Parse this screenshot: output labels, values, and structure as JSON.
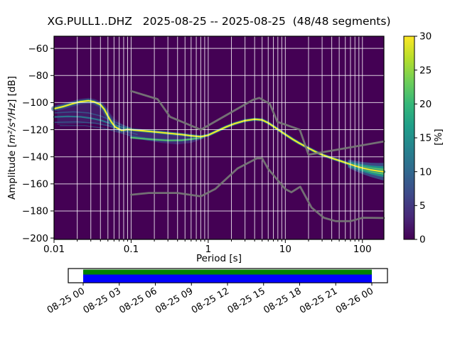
{
  "title": "XG.PULL1..DHZ   2025-08-25 -- 2025-08-25  (48/48 segments)",
  "axes": {
    "xlabel": "Period [s]",
    "ylabel_prefix": "Amplitude [",
    "ylabel_math": "m²/s⁴/Hz",
    "ylabel_suffix": "] [dB]",
    "x_tick_values": [
      0.01,
      0.1,
      1,
      10,
      100
    ],
    "x_tick_labels": [
      "0.01",
      "0.1",
      "1",
      "10",
      "100"
    ],
    "y_tick_values": [
      -60,
      -80,
      -100,
      -120,
      -140,
      -160,
      -180,
      -200
    ],
    "y_tick_labels": [
      "−60",
      "−80",
      "−100",
      "−120",
      "−140",
      "−160",
      "−180",
      "−200"
    ],
    "xlim": [
      0.01,
      190
    ],
    "ylim": [
      -201,
      -51
    ],
    "grid_color": "rgba(255,255,255,0.8)"
  },
  "colorbar": {
    "label": "[%]",
    "tick_values": [
      0,
      5,
      10,
      15,
      20,
      25,
      30
    ],
    "tick_labels": [
      "0",
      "5",
      "10",
      "15",
      "20",
      "25",
      "30"
    ],
    "min": 0,
    "max": 30,
    "gradient": [
      "#440154",
      "#482878",
      "#3e4989",
      "#31688e",
      "#26828e",
      "#1f9e89",
      "#35b779",
      "#6ece58",
      "#b5de2b",
      "#fde725"
    ]
  },
  "timeline": {
    "labels": [
      "08-25 00",
      "08-25 03",
      "08-25 06",
      "08-25 09",
      "08-25 12",
      "08-25 15",
      "08-25 18",
      "08-25 21",
      "08-26 00"
    ],
    "extent_color": "#008000",
    "coverage_color": "#0000ff",
    "box_color": "#ffffff"
  },
  "chart_data": {
    "type": "heatmap",
    "title": "XG.PULL1..DHZ   2025-08-25 -- 2025-08-25  (48/48 segments)",
    "xlabel": "Period [s]",
    "ylabel": "Amplitude [m²/s⁴/Hz] [dB]",
    "colormap": "viridis",
    "background": "#440154",
    "clim": [
      0,
      30
    ],
    "clim_label": "[%]",
    "xlim": [
      0.01,
      190
    ],
    "ylim": [
      -201,
      -51
    ],
    "x_log": true,
    "mode_curve": [
      [
        0.01,
        -104.5
      ],
      [
        0.013,
        -103
      ],
      [
        0.017,
        -101
      ],
      [
        0.022,
        -99.3
      ],
      [
        0.028,
        -98.6
      ],
      [
        0.033,
        -99.4
      ],
      [
        0.04,
        -101.5
      ],
      [
        0.045,
        -105
      ],
      [
        0.05,
        -110
      ],
      [
        0.055,
        -114
      ],
      [
        0.062,
        -118
      ],
      [
        0.075,
        -120.5
      ],
      [
        0.09,
        -119.8
      ],
      [
        0.13,
        -120.6
      ],
      [
        0.2,
        -121.6
      ],
      [
        0.3,
        -122.6
      ],
      [
        0.45,
        -123.6
      ],
      [
        0.6,
        -124.5
      ],
      [
        0.8,
        -125.2
      ],
      [
        1.0,
        -124
      ],
      [
        1.3,
        -121
      ],
      [
        1.7,
        -118
      ],
      [
        2.2,
        -115.5
      ],
      [
        3,
        -113.3
      ],
      [
        4,
        -112.3
      ],
      [
        5,
        -112.8
      ],
      [
        6,
        -115
      ],
      [
        7,
        -117.5
      ],
      [
        8.6,
        -121
      ],
      [
        10,
        -123.5
      ],
      [
        12.4,
        -127
      ],
      [
        15,
        -129.8
      ],
      [
        19,
        -133
      ],
      [
        25,
        -136.5
      ],
      [
        30,
        -138.5
      ],
      [
        40,
        -141
      ],
      [
        50,
        -142.8
      ],
      [
        65,
        -145
      ],
      [
        80,
        -146.7
      ],
      [
        100,
        -148.3
      ],
      [
        130,
        -149.7
      ],
      [
        160,
        -150.5
      ],
      [
        190,
        -151
      ]
    ],
    "lower_ridge": [
      [
        0.1,
        -125.8
      ],
      [
        0.14,
        -126.6
      ],
      [
        0.2,
        -127.3
      ],
      [
        0.3,
        -127.9
      ],
      [
        0.45,
        -127.8
      ],
      [
        0.6,
        -127
      ],
      [
        0.75,
        -126.2
      ],
      [
        0.85,
        -125.6
      ]
    ],
    "traces": [
      {
        "color": "#2a788e",
        "width": 2.2,
        "opacity": 0.95,
        "points": [
          [
            0.01,
            -110.6
          ],
          [
            0.015,
            -110.2
          ],
          [
            0.022,
            -110.5
          ],
          [
            0.03,
            -111.5
          ],
          [
            0.04,
            -113
          ],
          [
            0.055,
            -115.5
          ],
          [
            0.07,
            -117.5
          ],
          [
            0.09,
            -119.2
          ]
        ]
      },
      {
        "color": "#355f8d",
        "width": 1.6,
        "opacity": 0.8,
        "points": [
          [
            0.01,
            -107.6
          ],
          [
            0.018,
            -106.8
          ],
          [
            0.028,
            -107.6
          ],
          [
            0.04,
            -109.8
          ],
          [
            0.055,
            -113
          ],
          [
            0.075,
            -116.5
          ],
          [
            0.1,
            -119
          ]
        ]
      },
      {
        "color": "#355f8d",
        "width": 1.6,
        "opacity": 0.8,
        "points": [
          [
            0.01,
            -114.6
          ],
          [
            0.02,
            -114.2
          ],
          [
            0.035,
            -115.3
          ],
          [
            0.05,
            -117
          ],
          [
            0.07,
            -119.5
          ],
          [
            0.09,
            -121.5
          ],
          [
            0.12,
            -123.5
          ]
        ]
      },
      {
        "color": "#31688e",
        "width": 1.4,
        "opacity": 0.6,
        "points": [
          [
            0.012,
            -117
          ],
          [
            0.025,
            -117
          ],
          [
            0.045,
            -119
          ],
          [
            0.07,
            -122
          ],
          [
            0.1,
            -124.5
          ],
          [
            0.15,
            -126
          ]
        ]
      }
    ],
    "blobs": [
      {
        "color": "rgba(63,71,136,0.38)",
        "upper": [
          [
            0.011,
            -101.5
          ],
          [
            0.016,
            -99.6
          ],
          [
            0.024,
            -98
          ],
          [
            0.032,
            -98.2
          ],
          [
            0.04,
            -100.5
          ],
          [
            0.05,
            -106
          ],
          [
            0.062,
            -112
          ],
          [
            0.08,
            -116.5
          ],
          [
            0.1,
            -118.5
          ]
        ],
        "lower": [
          [
            0.1,
            -123.5
          ],
          [
            0.08,
            -122.5
          ],
          [
            0.06,
            -120
          ],
          [
            0.045,
            -115.5
          ],
          [
            0.03,
            -115
          ],
          [
            0.02,
            -115.8
          ],
          [
            0.011,
            -116.5
          ]
        ]
      },
      {
        "color": "rgba(63,81,150,0.5)",
        "upper": [
          [
            0.09,
            -118.8
          ],
          [
            0.15,
            -119.8
          ],
          [
            0.25,
            -120.8
          ],
          [
            0.4,
            -122
          ],
          [
            0.6,
            -123.2
          ],
          [
            0.85,
            -124.3
          ]
        ],
        "lower": [
          [
            0.85,
            -126.8
          ],
          [
            0.6,
            -129.8
          ],
          [
            0.4,
            -130.8
          ],
          [
            0.25,
            -129.8
          ],
          [
            0.15,
            -127.8
          ],
          [
            0.09,
            -124.5
          ]
        ]
      }
    ],
    "mode_layers": [
      {
        "color": "#2a788e",
        "width": 4.2,
        "opacity": 0.9
      },
      {
        "color": "#5ec962",
        "width": 2.5,
        "opacity": 0.95
      },
      {
        "color": "#fde725",
        "width": 1.8,
        "opacity": 1
      }
    ],
    "left_band": {
      "t_max": 0.105,
      "color": "#3b528b",
      "width": 8,
      "opacity": 0.55
    },
    "right_band": {
      "t_start": 55,
      "t_end": 190,
      "layers": [
        {
          "w0": 2.5,
          "w1": 6.5,
          "color": "#3b528b",
          "opacity": 0.9
        },
        {
          "w0": 1.5,
          "w1": 4.0,
          "color": "#21918c",
          "opacity": 0.95
        },
        {
          "w0": 0.8,
          "w1": 2.2,
          "color": "#5ec962",
          "opacity": 0.95
        }
      ]
    },
    "noise_models": {
      "color": "#767676",
      "width": 2.8,
      "high": [
        [
          0.1,
          -91.5
        ],
        [
          0.22,
          -97.4
        ],
        [
          0.32,
          -110.5
        ],
        [
          0.8,
          -120.0
        ],
        [
          3.8,
          -98.0
        ],
        [
          4.6,
          -96.5
        ],
        [
          6.3,
          -101.0
        ],
        [
          7.9,
          -114.2
        ],
        [
          15.4,
          -120.0
        ],
        [
          20,
          -138.5
        ],
        [
          190,
          -128.7
        ]
      ],
      "low": [
        [
          0.1,
          -168.0
        ],
        [
          0.17,
          -166.7
        ],
        [
          0.4,
          -166.7
        ],
        [
          0.8,
          -169.2
        ],
        [
          1.24,
          -163.7
        ],
        [
          2.4,
          -148.6
        ],
        [
          4.3,
          -141.1
        ],
        [
          5.0,
          -141.1
        ],
        [
          6.0,
          -149.0
        ],
        [
          10.0,
          -163.8
        ],
        [
          12.0,
          -166.2
        ],
        [
          15.6,
          -162.1
        ],
        [
          21.9,
          -177.5
        ],
        [
          31.6,
          -185.0
        ],
        [
          45,
          -187.5
        ],
        [
          70,
          -187.5
        ],
        [
          101,
          -185.0
        ],
        [
          190,
          -185.2
        ]
      ]
    }
  }
}
